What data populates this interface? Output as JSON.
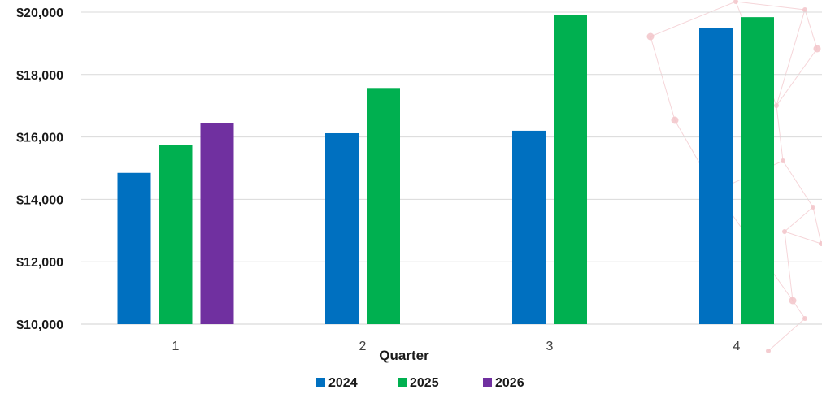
{
  "chart_data": {
    "type": "bar",
    "categories": [
      "1",
      "2",
      "3",
      "4"
    ],
    "series": [
      {
        "name": "2024",
        "color": "#0070C0",
        "values": [
          14850,
          16120,
          16200,
          19480
        ]
      },
      {
        "name": "2025",
        "color": "#00B050",
        "values": [
          15740,
          17570,
          19920,
          19840
        ]
      },
      {
        "name": "2026",
        "color": "#7030A0",
        "values": [
          16440,
          null,
          null,
          null
        ]
      }
    ],
    "xlabel": "Quarter",
    "ylabel": "",
    "ylim": [
      10000,
      20000
    ],
    "yticks": [
      "$10,000",
      "$12,000",
      "$14,000",
      "$16,000",
      "$18,000",
      "$20,000"
    ],
    "grid": true,
    "legend": "bottom"
  },
  "colors": {
    "gridline": "#d9d9d9",
    "decor_network": "#f2c4c9"
  }
}
